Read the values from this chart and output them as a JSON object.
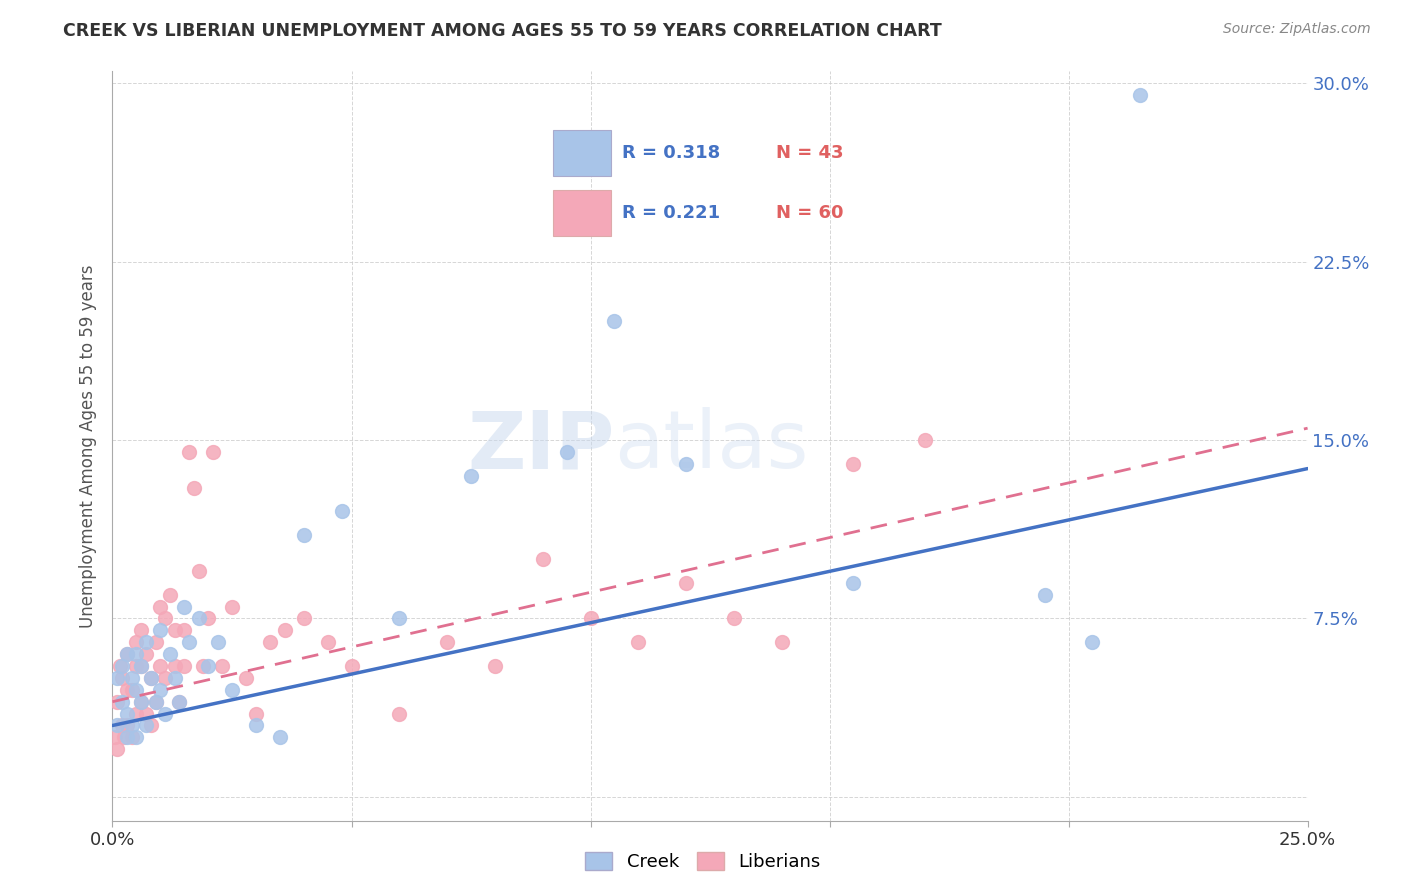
{
  "title": "CREEK VS LIBERIAN UNEMPLOYMENT AMONG AGES 55 TO 59 YEARS CORRELATION CHART",
  "source": "Source: ZipAtlas.com",
  "ylabel": "Unemployment Among Ages 55 to 59 years",
  "xlim": [
    0.0,
    0.25
  ],
  "ylim": [
    -0.01,
    0.305
  ],
  "xticks": [
    0.0,
    0.05,
    0.1,
    0.15,
    0.2,
    0.25
  ],
  "yticks": [
    0.0,
    0.075,
    0.15,
    0.225,
    0.3
  ],
  "creek_color": "#a8c4e8",
  "liberian_color": "#f4a8b8",
  "creek_line_color": "#4472c4",
  "liberian_line_color": "#e07090",
  "creek_r": "R = 0.318",
  "creek_n": "N = 43",
  "liberian_r": "R = 0.221",
  "liberian_n": "N = 60",
  "watermark_zip": "ZIP",
  "watermark_atlas": "atlas",
  "creek_x": [
    0.001,
    0.001,
    0.002,
    0.002,
    0.003,
    0.003,
    0.003,
    0.004,
    0.004,
    0.005,
    0.005,
    0.005,
    0.006,
    0.006,
    0.007,
    0.007,
    0.008,
    0.009,
    0.01,
    0.01,
    0.011,
    0.012,
    0.013,
    0.014,
    0.015,
    0.016,
    0.018,
    0.02,
    0.022,
    0.025,
    0.03,
    0.035,
    0.04,
    0.048,
    0.06,
    0.075,
    0.095,
    0.105,
    0.12,
    0.155,
    0.195,
    0.205,
    0.215
  ],
  "creek_y": [
    0.03,
    0.05,
    0.04,
    0.055,
    0.025,
    0.035,
    0.06,
    0.03,
    0.05,
    0.025,
    0.045,
    0.06,
    0.04,
    0.055,
    0.03,
    0.065,
    0.05,
    0.04,
    0.045,
    0.07,
    0.035,
    0.06,
    0.05,
    0.04,
    0.08,
    0.065,
    0.075,
    0.055,
    0.065,
    0.045,
    0.03,
    0.025,
    0.11,
    0.12,
    0.075,
    0.135,
    0.145,
    0.2,
    0.14,
    0.09,
    0.085,
    0.065,
    0.295
  ],
  "liberian_x": [
    0.0005,
    0.001,
    0.001,
    0.0015,
    0.002,
    0.002,
    0.0025,
    0.003,
    0.003,
    0.003,
    0.004,
    0.004,
    0.005,
    0.005,
    0.005,
    0.006,
    0.006,
    0.006,
    0.007,
    0.007,
    0.008,
    0.008,
    0.009,
    0.009,
    0.01,
    0.01,
    0.011,
    0.011,
    0.012,
    0.013,
    0.013,
    0.014,
    0.015,
    0.015,
    0.016,
    0.017,
    0.018,
    0.019,
    0.02,
    0.021,
    0.023,
    0.025,
    0.028,
    0.03,
    0.033,
    0.036,
    0.04,
    0.045,
    0.05,
    0.06,
    0.07,
    0.08,
    0.09,
    0.1,
    0.11,
    0.12,
    0.13,
    0.14,
    0.155,
    0.17
  ],
  "liberian_y": [
    0.025,
    0.02,
    0.04,
    0.055,
    0.03,
    0.05,
    0.025,
    0.03,
    0.045,
    0.06,
    0.025,
    0.045,
    0.035,
    0.055,
    0.065,
    0.04,
    0.055,
    0.07,
    0.035,
    0.06,
    0.03,
    0.05,
    0.04,
    0.065,
    0.055,
    0.08,
    0.05,
    0.075,
    0.085,
    0.055,
    0.07,
    0.04,
    0.055,
    0.07,
    0.145,
    0.13,
    0.095,
    0.055,
    0.075,
    0.145,
    0.055,
    0.08,
    0.05,
    0.035,
    0.065,
    0.07,
    0.075,
    0.065,
    0.055,
    0.035,
    0.065,
    0.055,
    0.1,
    0.075,
    0.065,
    0.09,
    0.075,
    0.065,
    0.14,
    0.15
  ],
  "creek_line_x": [
    0.0,
    0.25
  ],
  "creek_line_y": [
    0.03,
    0.138
  ],
  "liberian_line_x": [
    0.0,
    0.25
  ],
  "liberian_line_y": [
    0.04,
    0.155
  ]
}
